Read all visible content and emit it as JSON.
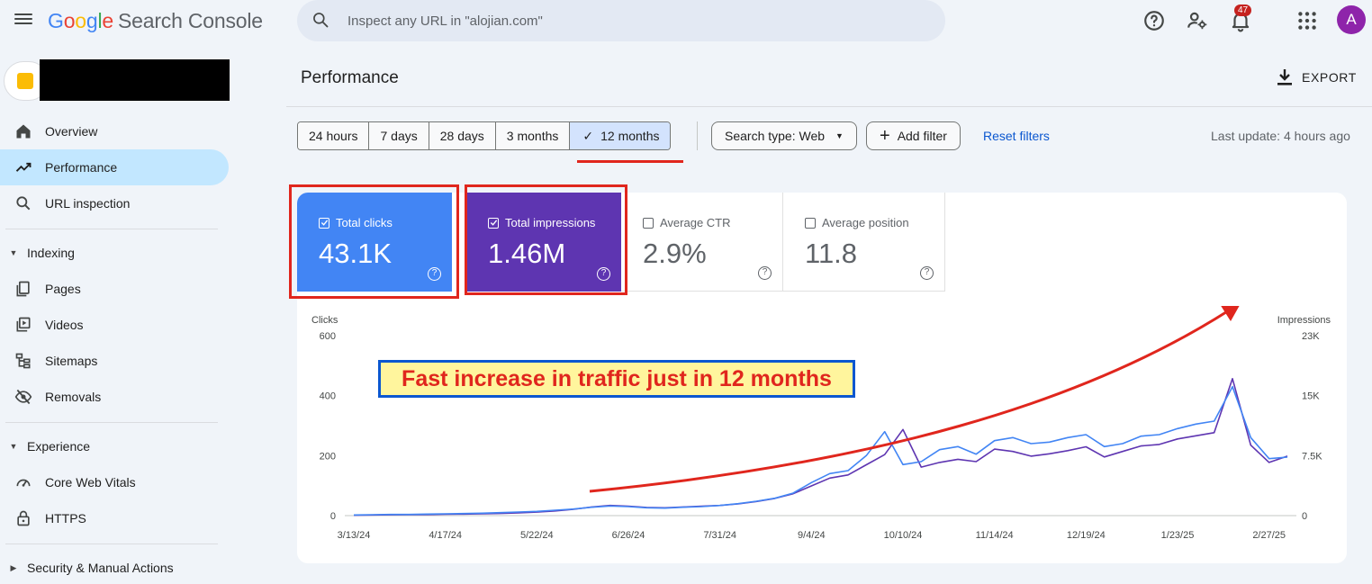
{
  "app": {
    "logo_letters": [
      "G",
      "o",
      "o",
      "g",
      "l",
      "e"
    ],
    "product_name": "Search Console"
  },
  "search": {
    "placeholder": "Inspect any URL in \"alojian.com\""
  },
  "header": {
    "notification_count": "47",
    "avatar_letter": "A"
  },
  "sidebar": {
    "items": [
      {
        "label": "Overview",
        "icon": "home-icon"
      },
      {
        "label": "Performance",
        "icon": "trending-up-icon",
        "active": true
      },
      {
        "label": "URL inspection",
        "icon": "search-icon"
      }
    ],
    "sections": [
      {
        "label": "Indexing",
        "items": [
          {
            "label": "Pages",
            "icon": "pages-icon"
          },
          {
            "label": "Videos",
            "icon": "video-icon"
          },
          {
            "label": "Sitemaps",
            "icon": "sitemap-icon"
          },
          {
            "label": "Removals",
            "icon": "eye-off-icon"
          }
        ]
      },
      {
        "label": "Experience",
        "items": [
          {
            "label": "Core Web Vitals",
            "icon": "gauge-icon"
          },
          {
            "label": "HTTPS",
            "icon": "lock-icon"
          }
        ]
      },
      {
        "label": "Security & Manual Actions",
        "items": []
      }
    ]
  },
  "main": {
    "title": "Performance",
    "export_label": "EXPORT",
    "date_ranges": [
      "24 hours",
      "7 days",
      "28 days",
      "3 months",
      "12 months"
    ],
    "selected_range": "12 months",
    "search_type_label": "Search type: Web",
    "add_filter_label": "Add filter",
    "reset_filters_label": "Reset filters",
    "last_update": "Last update: 4 hours ago"
  },
  "metrics": [
    {
      "label": "Total clicks",
      "value": "43.1K",
      "checked": true,
      "color": "#4285f4"
    },
    {
      "label": "Total impressions",
      "value": "1.46M",
      "checked": true,
      "color": "#5e35b1"
    },
    {
      "label": "Average CTR",
      "value": "2.9%",
      "checked": false
    },
    {
      "label": "Average position",
      "value": "11.8",
      "checked": false
    }
  ],
  "annotation": {
    "text": "Fast increase in traffic just in 12 months"
  },
  "chart_data": {
    "type": "line",
    "left_axis": {
      "label": "Clicks",
      "ticks": [
        "0",
        "200",
        "400",
        "600"
      ],
      "range": [
        0,
        600
      ]
    },
    "right_axis": {
      "label": "Impressions",
      "ticks": [
        "0",
        "7.5K",
        "15K",
        "23K"
      ],
      "range": [
        0,
        23000
      ]
    },
    "x_tick_labels": [
      "3/13/24",
      "4/17/24",
      "5/22/24",
      "6/26/24",
      "7/31/24",
      "9/4/24",
      "10/10/24",
      "11/14/24",
      "12/19/24",
      "1/23/25",
      "2/27/25"
    ],
    "weeks": [
      "3/13/24",
      "3/20/24",
      "3/27/24",
      "4/3/24",
      "4/10/24",
      "4/17/24",
      "4/24/24",
      "5/1/24",
      "5/8/24",
      "5/15/24",
      "5/22/24",
      "5/29/24",
      "6/5/24",
      "6/12/24",
      "6/19/24",
      "6/26/24",
      "7/3/24",
      "7/10/24",
      "7/17/24",
      "7/24/24",
      "7/31/24",
      "8/7/24",
      "8/14/24",
      "8/21/24",
      "8/28/24",
      "9/4/24",
      "9/11/24",
      "9/18/24",
      "9/25/24",
      "10/2/24",
      "10/10/24",
      "10/17/24",
      "10/24/24",
      "10/31/24",
      "11/7/24",
      "11/14/24",
      "11/21/24",
      "11/28/24",
      "12/5/24",
      "12/12/24",
      "12/19/24",
      "12/26/24",
      "1/2/25",
      "1/9/25",
      "1/16/25",
      "1/23/25",
      "1/30/25",
      "2/6/25",
      "2/13/25",
      "2/20/25",
      "2/27/25",
      "3/6/25"
    ],
    "series": [
      {
        "name": "Clicks",
        "axis": "left",
        "color": "#4285f4",
        "values": [
          2,
          3,
          4,
          4,
          5,
          6,
          7,
          8,
          10,
          12,
          14,
          18,
          22,
          28,
          32,
          30,
          26,
          25,
          28,
          30,
          34,
          40,
          48,
          58,
          75,
          110,
          140,
          150,
          200,
          280,
          170,
          180,
          220,
          230,
          205,
          250,
          260,
          240,
          245,
          260,
          270,
          230,
          240,
          265,
          270,
          290,
          305,
          315,
          430,
          260,
          190,
          195
        ]
      },
      {
        "name": "Impressions",
        "axis": "right",
        "color": "#5e35b1",
        "values": [
          50,
          80,
          100,
          120,
          140,
          170,
          200,
          230,
          280,
          350,
          450,
          600,
          800,
          1100,
          1300,
          1200,
          1050,
          1000,
          1100,
          1200,
          1300,
          1500,
          1800,
          2200,
          2800,
          3800,
          4800,
          5200,
          6500,
          7800,
          11000,
          6200,
          6800,
          7200,
          6900,
          8500,
          8200,
          7600,
          7900,
          8300,
          8800,
          7500,
          8200,
          8900,
          9100,
          9800,
          10200,
          10600,
          17500,
          9000,
          6800,
          7600
        ]
      }
    ]
  }
}
